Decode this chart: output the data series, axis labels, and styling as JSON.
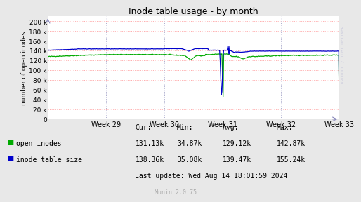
{
  "title": "Inode table usage - by month",
  "ylabel": "number of open inodes",
  "background_color": "#e8e8e8",
  "plot_bg_color": "#ffffff",
  "grid_color_h": "#ffaaaa",
  "grid_color_v": "#aaaacc",
  "ytick_labels": [
    "0",
    "20 k",
    "40 k",
    "60 k",
    "80 k",
    "100 k",
    "120 k",
    "140 k",
    "160 k",
    "180 k",
    "200 k"
  ],
  "ytick_vals": [
    0,
    20000,
    40000,
    60000,
    80000,
    100000,
    120000,
    140000,
    160000,
    180000,
    200000
  ],
  "xtick_labels": [
    "Week 29",
    "Week 30",
    "Week 31",
    "Week 32",
    "Week 33"
  ],
  "ylim": [
    0,
    210000
  ],
  "legend_entries": [
    "open inodes",
    "inode table size"
  ],
  "green_color": "#00aa00",
  "blue_color": "#0000cc",
  "stats_header": [
    "Cur:",
    "Min:",
    "Avg:",
    "Max:"
  ],
  "stats_open": [
    "131.13k",
    "34.87k",
    "129.12k",
    "142.87k"
  ],
  "stats_table": [
    "138.36k",
    "35.08k",
    "139.47k",
    "155.24k"
  ],
  "last_update": "Last update: Wed Aug 14 18:01:59 2024",
  "munin_text": "Munin 2.0.75",
  "watermark": "RRDTOOL / TOBI OETIKER"
}
